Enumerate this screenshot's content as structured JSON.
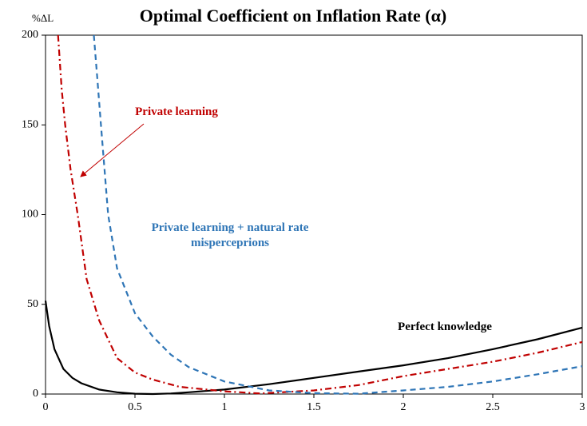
{
  "chart_data": {
    "type": "line",
    "title": "Optimal Coefficient on Inflation Rate (α)",
    "y_label": "%ΔL",
    "xlim": [
      0,
      3
    ],
    "ylim": [
      0,
      200
    ],
    "xticks": [
      0,
      0.5,
      1,
      1.5,
      2,
      2.5,
      3
    ],
    "yticks": [
      0,
      50,
      100,
      150,
      200
    ],
    "grid": false,
    "series": [
      {
        "name": "Perfect knowledge",
        "color": "#000000",
        "style": "solid",
        "x": [
          0,
          0.02,
          0.05,
          0.1,
          0.15,
          0.2,
          0.3,
          0.4,
          0.5,
          0.6,
          0.7,
          0.8,
          1,
          1.25,
          1.5,
          1.75,
          2,
          2.25,
          2.5,
          2.75,
          3
        ],
        "values": [
          52,
          38,
          25,
          14,
          9,
          6,
          2.5,
          1,
          0.2,
          0,
          0.3,
          1,
          2.5,
          5.5,
          9,
          12.5,
          16,
          20,
          25,
          30.5,
          37
        ]
      },
      {
        "name": "Private learning",
        "color": "#c00000",
        "style": "dashdot",
        "x": [
          0.07,
          0.09,
          0.11,
          0.14,
          0.18,
          0.23,
          0.3,
          0.4,
          0.5,
          0.6,
          0.75,
          1,
          1.2,
          1.5,
          1.75,
          2,
          2.25,
          2.5,
          2.75,
          3
        ],
        "values": [
          200,
          170,
          150,
          125,
          100,
          64,
          41,
          20,
          12,
          8,
          4,
          1.5,
          0.3,
          2,
          5,
          10,
          14,
          18,
          23,
          29
        ]
      },
      {
        "name": "Private learning + natural rate misperceprions",
        "color": "#2e75b6",
        "style": "dashed",
        "x": [
          0.27,
          0.29,
          0.31,
          0.33,
          0.35,
          0.4,
          0.5,
          0.6,
          0.7,
          0.8,
          1,
          1.25,
          1.5,
          1.75,
          2,
          2.25,
          2.5,
          2.75,
          3
        ],
        "values": [
          200,
          175,
          150,
          125,
          100,
          70,
          45,
          32,
          22,
          15,
          7,
          2,
          0.5,
          0.2,
          2,
          4,
          7,
          11,
          15.5
        ]
      }
    ]
  }
}
